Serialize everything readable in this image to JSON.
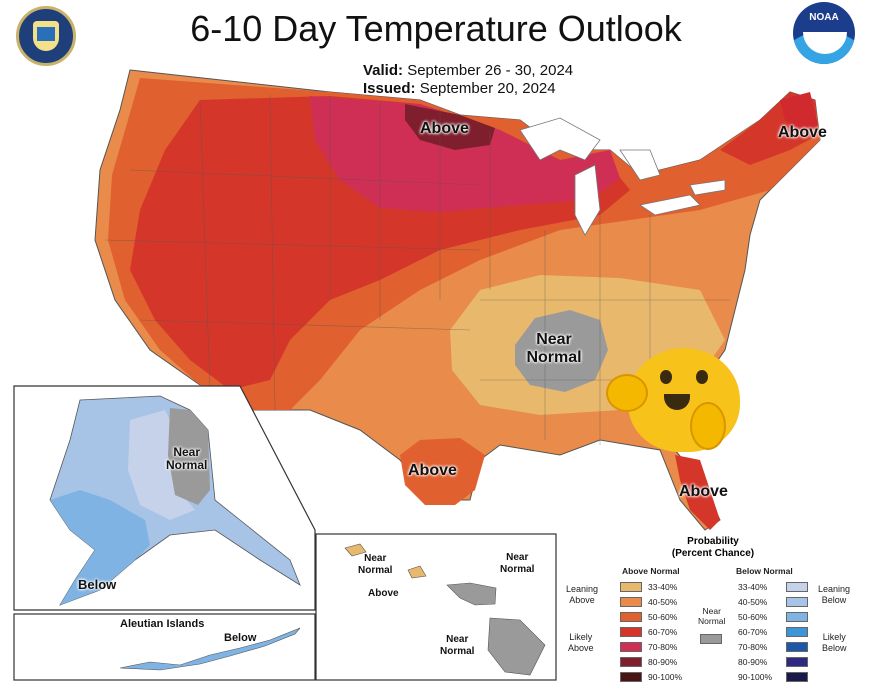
{
  "title": "6-10 Day Temperature Outlook",
  "valid_label": "Valid:",
  "valid_value": "September 26 - 30, 2024",
  "issued_label": "Issued:",
  "issued_value": "September 20, 2024",
  "logo_text": "NOAA",
  "map_labels": {
    "above_north": "Above",
    "above_northeast": "Above",
    "near_normal_line1": "Near",
    "near_normal_line2": "Normal",
    "above_texas": "Above",
    "above_florida": "Above",
    "alaska_near_line1": "Near",
    "alaska_near_line2": "Normal",
    "alaska_below": "Below",
    "aleutian_title": "Aleutian Islands",
    "aleutian_below": "Below",
    "hawaii_near1_line1": "Near",
    "hawaii_near1_line2": "Normal",
    "hawaii_above": "Above",
    "hawaii_near2_line1": "Near",
    "hawaii_near2_line2": "Normal",
    "hawaii_near3_line1": "Near",
    "hawaii_near3_line2": "Normal"
  },
  "legend": {
    "title_line1": "Probability",
    "title_line2": "(Percent Chance)",
    "above_header": "Above Normal",
    "below_header": "Below Normal",
    "near_line1": "Near",
    "near_line2": "Normal",
    "leaning_above_1": "Leaning",
    "leaning_above_2": "Above",
    "likely_above_1": "Likely",
    "likely_above_2": "Above",
    "leaning_below_1": "Leaning",
    "leaning_below_2": "Below",
    "likely_below_1": "Likely",
    "likely_below_2": "Below",
    "above_bins": [
      {
        "label": "33-40%",
        "color": "#e8b86d"
      },
      {
        "label": "40-50%",
        "color": "#e98b4a"
      },
      {
        "label": "50-60%",
        "color": "#e0602f"
      },
      {
        "label": "60-70%",
        "color": "#d4372a"
      },
      {
        "label": "70-80%",
        "color": "#cf2f55"
      },
      {
        "label": "80-90%",
        "color": "#7f1f2e"
      },
      {
        "label": "90-100%",
        "color": "#4a1414"
      }
    ],
    "below_bins": [
      {
        "label": "33-40%",
        "color": "#c6d2ea"
      },
      {
        "label": "40-50%",
        "color": "#a7c3e6"
      },
      {
        "label": "50-60%",
        "color": "#7fb3e3"
      },
      {
        "label": "60-70%",
        "color": "#3d94d6"
      },
      {
        "label": "70-80%",
        "color": "#1c58a8"
      },
      {
        "label": "80-90%",
        "color": "#2d2a80"
      },
      {
        "label": "90-100%",
        "color": "#1a1a4a"
      }
    ],
    "near_color": "#9a9a9a"
  }
}
